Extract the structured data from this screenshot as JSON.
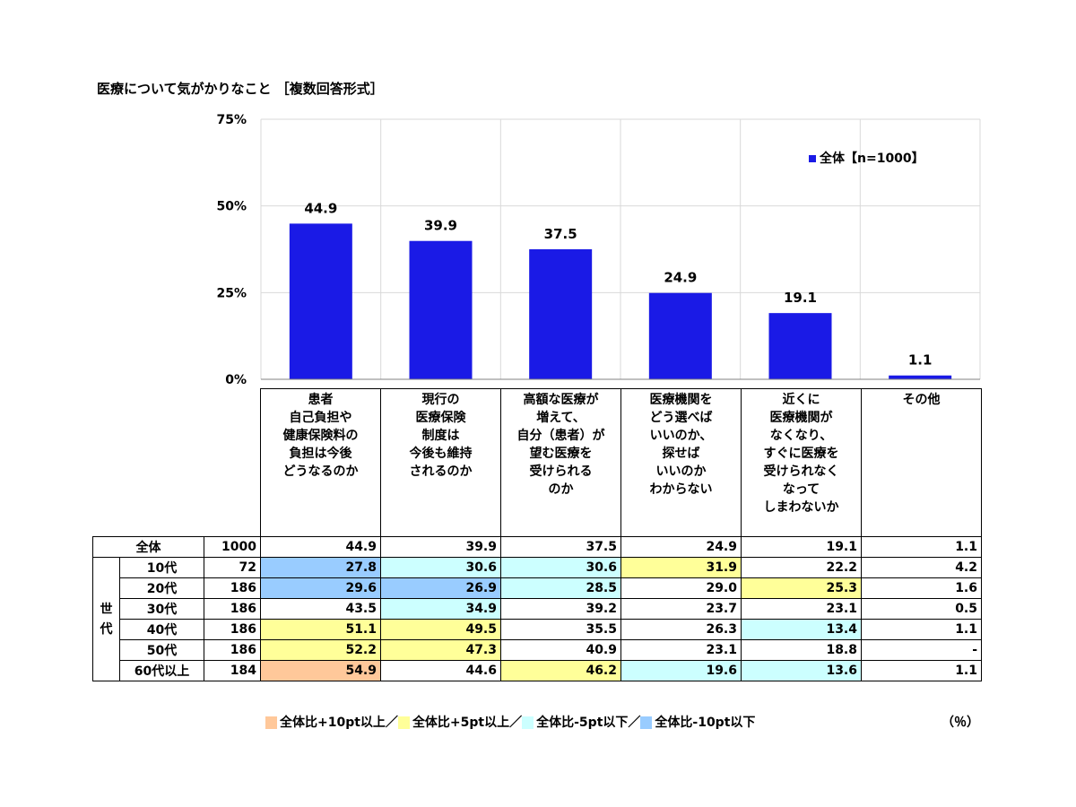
{
  "title": "医療について気がかりなこと ［複数回答形式］",
  "legend_label": "全体【n=1000】",
  "colors": {
    "bar": "#1a1ae6",
    "plus10": "#ffc89a",
    "plus5": "#ffff99",
    "minus5": "#ccffff",
    "minus10": "#99ccff"
  },
  "chart_data": {
    "type": "bar",
    "categories": [
      "患者\n自己負担や\n健康保険料の\n負担は今後\nどうなるのか",
      "現行の\n医療保険\n制度は\n今後も維持\nされるのか",
      "高額な医療が\n増えて、\n自分（患者）が\n望む医療を\n受けられる\nのか",
      "医療機関を\nどう選べば\nいいのか、\n探せば\nいいのか\nわからない",
      "近くに\n医療機関が\nなくなり、\nすぐに医療を\n受けられなく\nなって\nしまわないか",
      "その他"
    ],
    "series": [
      {
        "name": "全体【n=1000】",
        "values": [
          44.9,
          39.9,
          37.5,
          24.9,
          19.1,
          1.1
        ]
      }
    ],
    "value_labels": [
      "44.9",
      "39.9",
      "37.5",
      "24.9",
      "19.1",
      "1.1"
    ],
    "ylim": [
      0,
      75
    ],
    "yticks": [
      "0%",
      "25%",
      "50%",
      "75%"
    ],
    "ytick_values": [
      0,
      25,
      50,
      75
    ],
    "grid": true
  },
  "table": {
    "total_row": {
      "label": "全体",
      "n": "1000",
      "values": [
        "44.9",
        "39.9",
        "37.5",
        "24.9",
        "19.1",
        "1.1"
      ]
    },
    "group_label": "世代",
    "rows": [
      {
        "label": "10代",
        "n": "72",
        "values": [
          "27.8",
          "30.6",
          "30.6",
          "31.9",
          "22.2",
          "4.2"
        ],
        "highlight": [
          "minus10",
          "minus5",
          "minus5",
          "plus5",
          "",
          ""
        ]
      },
      {
        "label": "20代",
        "n": "186",
        "values": [
          "29.6",
          "26.9",
          "28.5",
          "29.0",
          "25.3",
          "1.6"
        ],
        "highlight": [
          "minus10",
          "minus10",
          "minus5",
          "",
          "plus5",
          ""
        ]
      },
      {
        "label": "30代",
        "n": "186",
        "values": [
          "43.5",
          "34.9",
          "39.2",
          "23.7",
          "23.1",
          "0.5"
        ],
        "highlight": [
          "",
          "minus5",
          "",
          "",
          "",
          ""
        ]
      },
      {
        "label": "40代",
        "n": "186",
        "values": [
          "51.1",
          "49.5",
          "35.5",
          "26.3",
          "13.4",
          "1.1"
        ],
        "highlight": [
          "plus5",
          "plus5",
          "",
          "",
          "minus5",
          ""
        ]
      },
      {
        "label": "50代",
        "n": "186",
        "values": [
          "52.2",
          "47.3",
          "40.9",
          "23.1",
          "18.8",
          "-"
        ],
        "highlight": [
          "plus5",
          "plus5",
          "",
          "",
          "",
          ""
        ]
      },
      {
        "label": "60代以上",
        "n": "184",
        "values": [
          "54.9",
          "44.6",
          "46.2",
          "19.6",
          "13.6",
          "1.1"
        ],
        "highlight": [
          "plus10",
          "",
          "plus5",
          "minus5",
          "minus5",
          ""
        ]
      }
    ]
  },
  "footer": {
    "plus10": "全体比+10pt以上／",
    "plus5": "全体比+5pt以上／",
    "minus5": "全体比-5pt以下／",
    "minus10": "全体比-10pt以下",
    "unit": "（％）"
  }
}
